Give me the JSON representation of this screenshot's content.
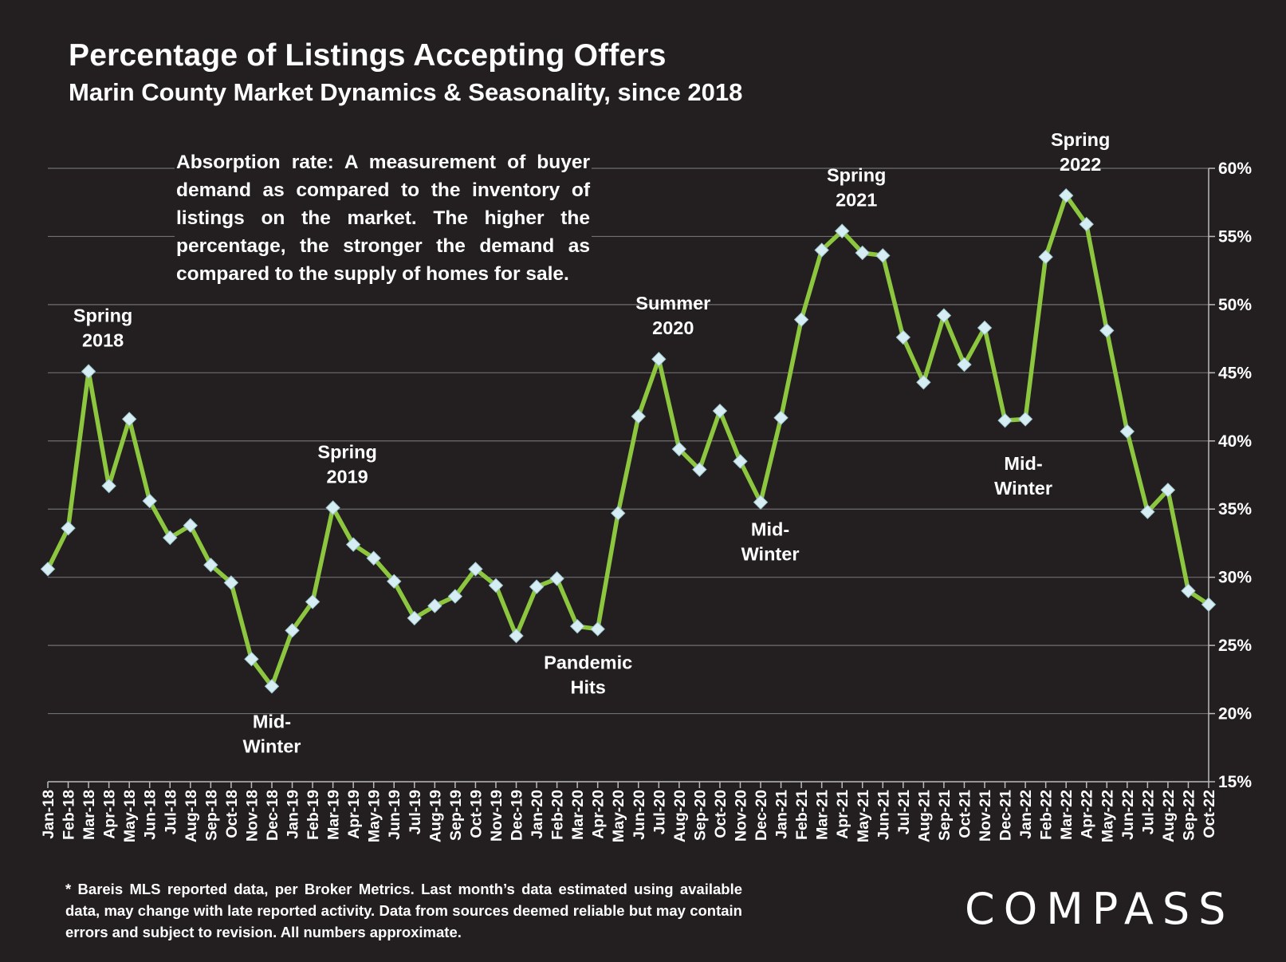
{
  "title": "Percentage of Listings Accepting Offers",
  "subtitle": "Marin County Market Dynamics & Seasonality, since 2018",
  "description": "Absorption rate: A measurement of buyer demand as compared to the inventory of listings on the market. The higher the percentage, the stronger the demand as compared to the supply of homes for sale.",
  "footnote": "* Bareis MLS reported data, per Broker Metrics. Last month’s data estimated using available data, may change with late reported activity. Data from sources deemed reliable but may contain errors and subject to revision. All numbers approximate.",
  "logo": "COMPASS",
  "colors": {
    "background": "#231f20",
    "line": "#8dc63f",
    "marker": "#d6eef3",
    "grid": "#6f6f6f",
    "text": "#ffffff"
  },
  "chart_data": {
    "type": "line",
    "title": "Percentage of Listings Accepting Offers",
    "xlabel": "",
    "ylabel": "",
    "ylim": [
      0.15,
      0.6
    ],
    "y_axis_position": "right",
    "grid": true,
    "marker": "diamond",
    "yticks": [
      0.15,
      0.2,
      0.25,
      0.3,
      0.35,
      0.4,
      0.45,
      0.5,
      0.55,
      0.6
    ],
    "ytick_labels": [
      "15%",
      "20%",
      "25%",
      "30%",
      "35%",
      "40%",
      "45%",
      "50%",
      "55%",
      "60%"
    ],
    "categories": [
      "Jan-18",
      "Feb-18",
      "Mar-18",
      "Apr-18",
      "May-18",
      "Jun-18",
      "Jul-18",
      "Aug-18",
      "Sep-18",
      "Oct-18",
      "Nov-18",
      "Dec-18",
      "Jan-19",
      "Feb-19",
      "Mar-19",
      "Apr-19",
      "May-19",
      "Jun-19",
      "Jul-19",
      "Aug-19",
      "Sep-19",
      "Oct-19",
      "Nov-19",
      "Dec-19",
      "Jan-20",
      "Feb-20",
      "Mar-20",
      "Apr-20",
      "May-20",
      "Jun-20",
      "Jul-20",
      "Aug-20",
      "Sep-20",
      "Oct-20",
      "Nov-20",
      "Dec-20",
      "Jan-21",
      "Feb-21",
      "Mar-21",
      "Apr-21",
      "May-21",
      "Jun-21",
      "Jul-21",
      "Aug-21",
      "Sep-21",
      "Oct-21",
      "Nov-21",
      "Dec-21",
      "Jan-22",
      "Feb-22",
      "Mar-22",
      "Apr-22",
      "May-22",
      "Jun-22",
      "Jul-22",
      "Aug-22",
      "Sep-22",
      "Oct-22"
    ],
    "values": [
      0.306,
      0.336,
      0.451,
      0.367,
      0.416,
      0.356,
      0.329,
      0.338,
      0.309,
      0.296,
      0.24,
      0.22,
      0.261,
      0.282,
      0.351,
      0.324,
      0.314,
      0.297,
      0.27,
      0.279,
      0.286,
      0.306,
      0.294,
      0.257,
      0.293,
      0.299,
      0.264,
      0.262,
      0.347,
      0.418,
      0.46,
      0.394,
      0.379,
      0.422,
      0.385,
      0.355,
      0.417,
      0.489,
      0.54,
      0.554,
      0.538,
      0.536,
      0.476,
      0.443,
      0.492,
      0.456,
      0.483,
      0.415,
      0.416,
      0.535,
      0.58,
      0.559,
      0.481,
      0.407,
      0.348,
      0.364,
      0.29,
      0.28
    ],
    "annotations": [
      {
        "lines": [
          "Spring",
          "2018"
        ],
        "category": "Mar-18"
      },
      {
        "lines": [
          "Mid-",
          "Winter"
        ],
        "category": "Dec-18"
      },
      {
        "lines": [
          "Spring",
          "2019"
        ],
        "category": "Mar-19"
      },
      {
        "lines": [
          "Pandemic",
          "Hits"
        ],
        "category": "Apr-20"
      },
      {
        "lines": [
          "Summer",
          "2020"
        ],
        "category": "Jul-20"
      },
      {
        "lines": [
          "Mid-",
          "Winter"
        ],
        "category": "Dec-20"
      },
      {
        "lines": [
          "Spring",
          "2021"
        ],
        "category": "Apr-21"
      },
      {
        "lines": [
          "Mid-",
          "Winter"
        ],
        "category": "Dec-21"
      },
      {
        "lines": [
          "Spring",
          "2022"
        ],
        "category": "Mar-22"
      }
    ]
  }
}
